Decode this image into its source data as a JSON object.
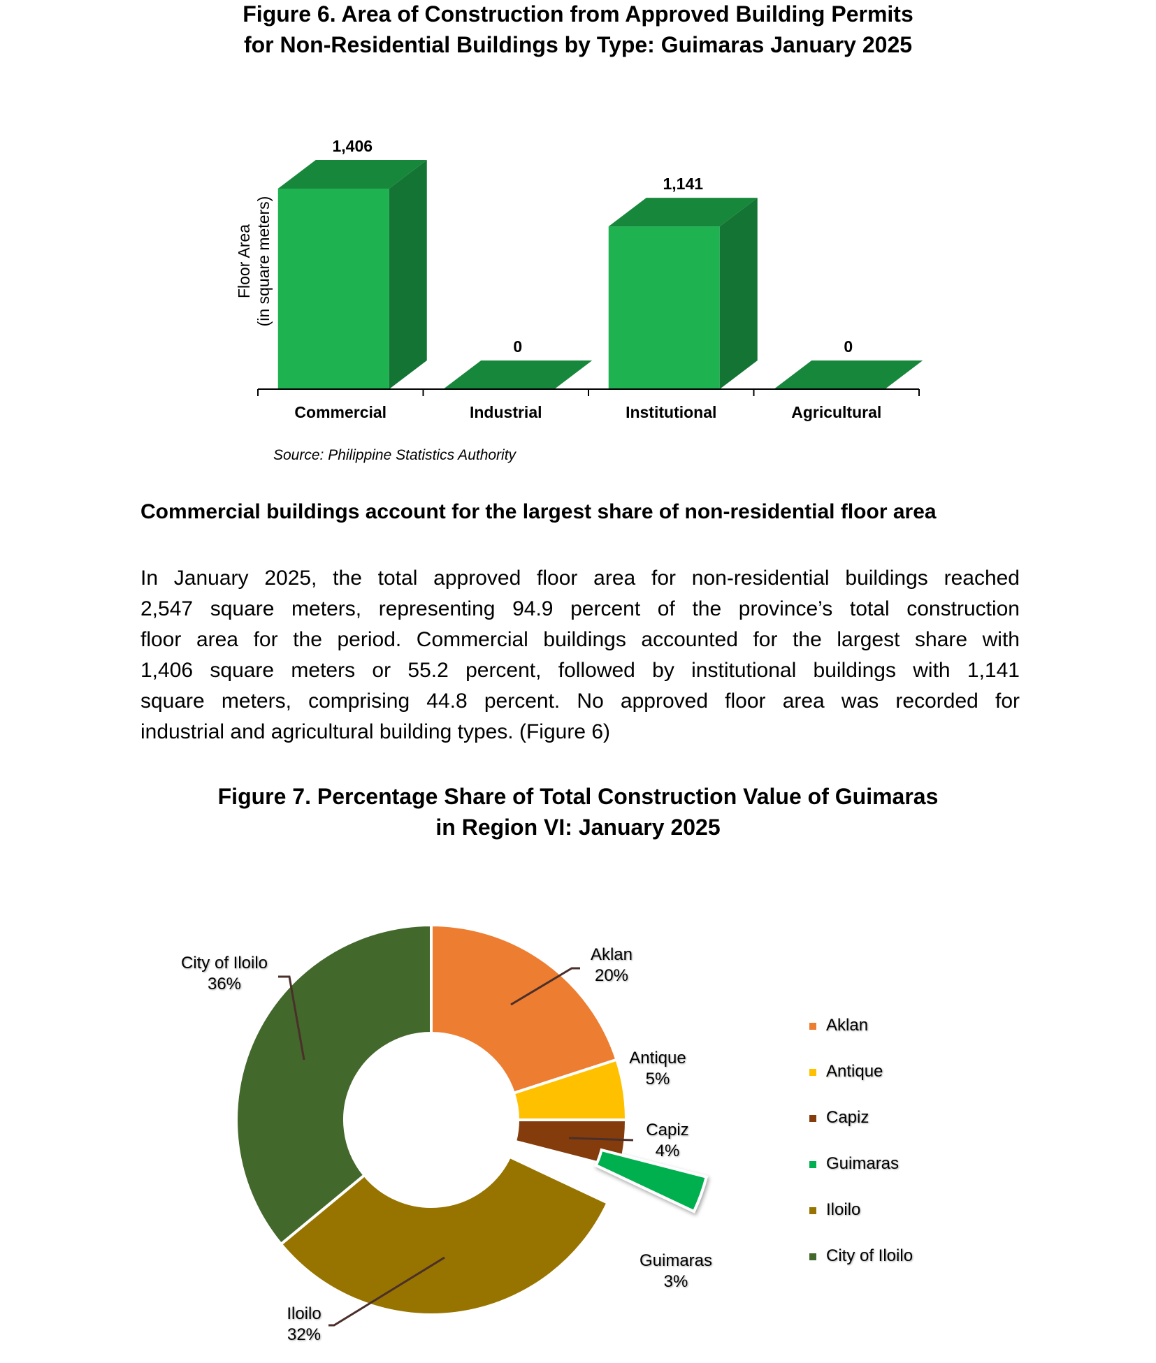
{
  "figure6": {
    "title_line1": "Figure 6. Area of Construction from Approved Building Permits",
    "title_line2": "for Non-Residential Buildings by Type: Guimaras January 2025",
    "source": "Source:  Philippine Statistics Authority"
  },
  "headline": "Commercial buildings account for the largest share of non-residential floor area",
  "paragraph_lines": [
    "In January 2025, the total approved floor area for non-residential buildings reached",
    "2,547 square meters, representing 94.9 percent of the province’s total construction",
    "floor area for the period. Commercial buildings accounted for the largest share with",
    "1,406 square meters or 55.2 percent, followed by institutional buildings with 1,141",
    "square meters, comprising 44.8 percent. No approved floor area was recorded for",
    "industrial and agricultural building types. (Figure 6)"
  ],
  "figure7": {
    "title_line1": "Figure 7. Percentage Share of Total Construction Value of Guimaras",
    "title_line2": "in Region VI: January 2025"
  },
  "colors": {
    "bar_front": "#1fb251",
    "bar_top": "#17873b",
    "bar_side": "#137434",
    "Aklan": "#ed7d31",
    "Antique": "#ffc000",
    "Capiz": "#843c0c",
    "Guimaras": "#00b050",
    "Iloilo": "#977400",
    "City of Iloilo": "#43682b",
    "leader": "#4a2f2a"
  },
  "chart_data": [
    {
      "type": "bar",
      "style": "3d",
      "categories": [
        "Commercial",
        "Industrial",
        "Institutional",
        "Agricultural"
      ],
      "values": [
        1406,
        0,
        1141,
        0
      ],
      "data_labels": [
        "1,406",
        "0",
        "1,141",
        "0"
      ],
      "title": "Figure 6. Area of Construction from Approved Building Permits for Non-Residential Buildings by Type: Guimaras January 2025",
      "xlabel": "",
      "ylabel_lines": [
        "Floor Area",
        "(in square meters)"
      ],
      "ylim": [
        0,
        1406
      ],
      "grid": false,
      "legend": "none"
    },
    {
      "type": "pie",
      "style": "doughnut",
      "categories": [
        "Aklan",
        "Antique",
        "Capiz",
        "Guimaras",
        "Iloilo",
        "City of Iloilo"
      ],
      "values": [
        20,
        5,
        4,
        3,
        32,
        36
      ],
      "data_labels": [
        "20%",
        "5%",
        "4%",
        "3%",
        "32%",
        "36%"
      ],
      "exploded": "Guimaras",
      "title": "Figure 7. Percentage Share of Total Construction Value of Guimaras in Region VI: January 2025",
      "legend": "right"
    }
  ]
}
